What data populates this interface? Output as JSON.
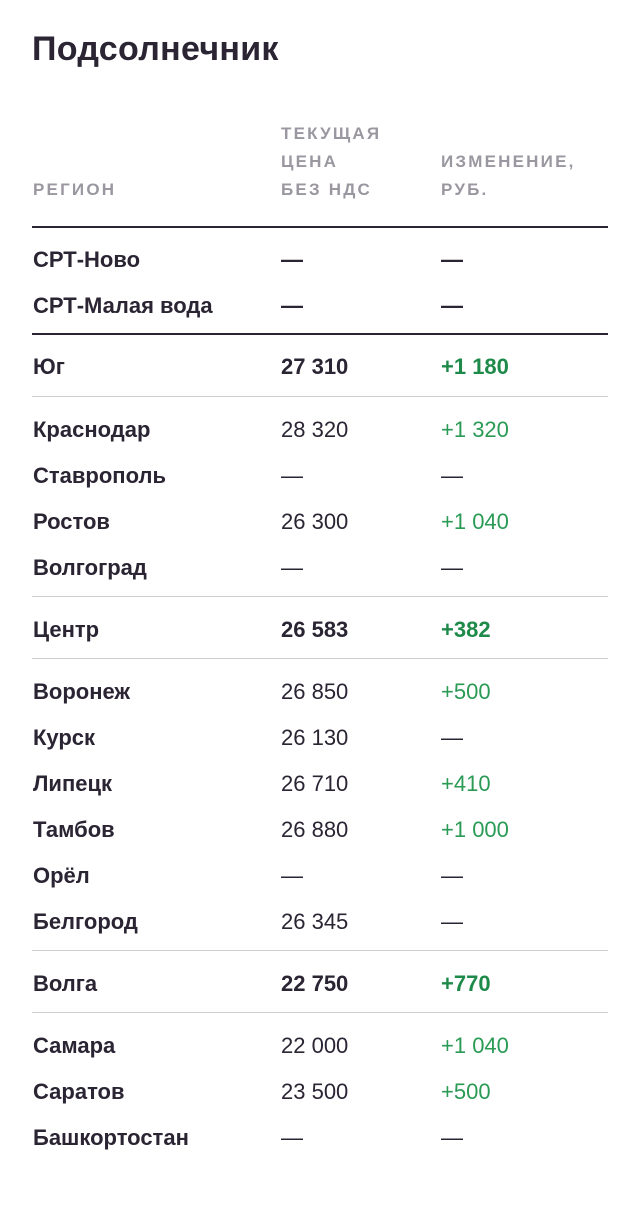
{
  "title": "Подсолнечник",
  "headers": {
    "region": "РЕГИОН",
    "price": "ТЕКУЩАЯ\nЦЕНА\nБЕЗ НДС",
    "change": "ИЗМЕНЕНИЕ,\nРУБ."
  },
  "rows": [
    {
      "name": "СРТ-Ново",
      "price": "—",
      "change": "—"
    },
    {
      "name": "СРТ-Малая вода",
      "price": "—",
      "change": "—"
    },
    {
      "name": "Юг",
      "price": "27 310",
      "change": "+1 180"
    },
    {
      "name": "Краснодар",
      "price": "28 320",
      "change": "+1 320"
    },
    {
      "name": "Ставрополь",
      "price": "—",
      "change": "—"
    },
    {
      "name": "Ростов",
      "price": "26 300",
      "change": "+1 040"
    },
    {
      "name": "Волгоград",
      "price": "—",
      "change": "—"
    },
    {
      "name": "Центр",
      "price": "26 583",
      "change": "+382"
    },
    {
      "name": "Воронеж",
      "price": "26 850",
      "change": "+500"
    },
    {
      "name": "Курск",
      "price": "26 130",
      "change": "—"
    },
    {
      "name": "Липецк",
      "price": "26 710",
      "change": "+410"
    },
    {
      "name": "Тамбов",
      "price": "26 880",
      "change": "+1 000"
    },
    {
      "name": "Орёл",
      "price": "—",
      "change": "—"
    },
    {
      "name": "Белгород",
      "price": "26 345",
      "change": "—"
    },
    {
      "name": "Волга",
      "price": "22 750",
      "change": "+770"
    },
    {
      "name": "Самара",
      "price": "22 000",
      "change": "+1 040"
    },
    {
      "name": "Саратов",
      "price": "23 500",
      "change": "+500"
    },
    {
      "name": "Башкортостан",
      "price": "—",
      "change": "—"
    }
  ],
  "colors": {
    "positive": "#2a9a55",
    "text": "#2a2433",
    "header": "#9a97a0"
  }
}
